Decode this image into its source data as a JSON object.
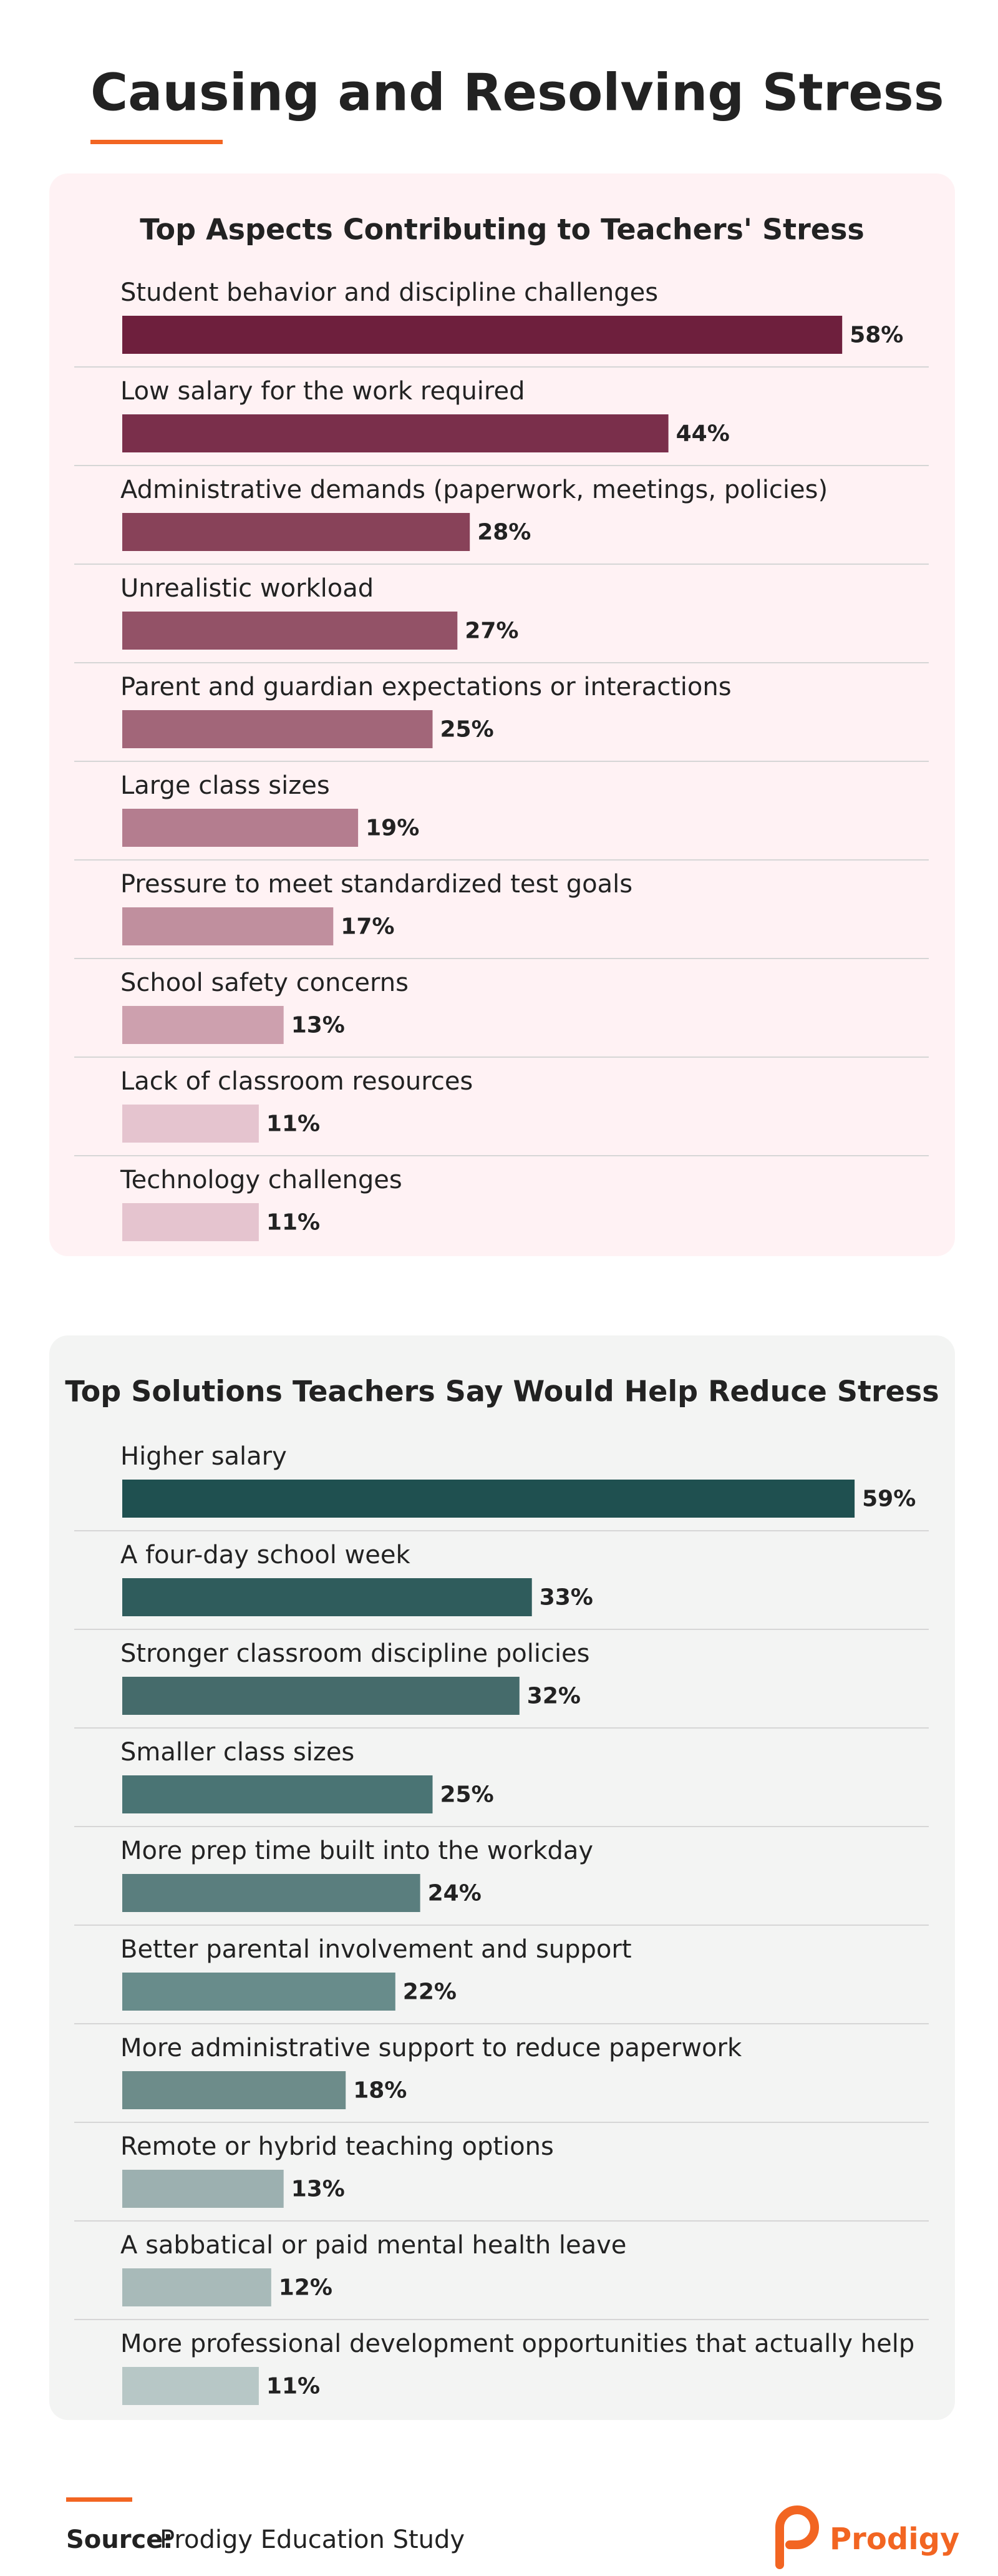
{
  "header": {
    "title": "Causing and Resolving Stress"
  },
  "chart_data": [
    {
      "type": "bar",
      "title": "Top Aspects Contributing to Teachers' Stress",
      "categories": [
        "Student behavior and discipline challenges",
        "Low salary for the work required",
        "Administrative demands (paperwork, meetings, policies)",
        "Unrealistic workload",
        "Parent and guardian expectations or interactions",
        "Large class sizes",
        "Pressure to meet standardized test goals",
        "School safety concerns",
        "Lack of classroom resources",
        "Technology challenges"
      ],
      "values": [
        58,
        44,
        28,
        27,
        25,
        19,
        17,
        13,
        11,
        11
      ],
      "value_labels": [
        "58%",
        "44%",
        "28%",
        "27%",
        "25%",
        "19%",
        "17%",
        "13%",
        "11%",
        "11%"
      ],
      "colors": [
        "#6e1f3d",
        "#7a2f4b",
        "#884259",
        "#935267",
        "#a26679",
        "#b47d8f",
        "#c08f9e",
        "#cda0ae",
        "#e5c4cf",
        "#e5c4cf"
      ]
    },
    {
      "type": "bar",
      "title": "Top Solutions Teachers Say Would Help Reduce Stress",
      "categories": [
        "Higher salary",
        "A four-day school week",
        "Stronger classroom discipline policies",
        "Smaller class sizes",
        "More prep time built into the workday",
        "Better parental involvement and support",
        "More administrative support to reduce paperwork",
        "Remote or hybrid teaching options",
        "A sabbatical or paid mental health leave",
        "More professional development opportunities that actually help"
      ],
      "values": [
        59,
        33,
        32,
        25,
        24,
        22,
        18,
        13,
        12,
        11
      ],
      "value_labels": [
        "59%",
        "33%",
        "32%",
        "25%",
        "24%",
        "22%",
        "18%",
        "13%",
        "12%",
        "11%"
      ],
      "colors": [
        "#1f5050",
        "#2f5c5c",
        "#456b6b",
        "#4a7474",
        "#5a7e7e",
        "#688c8b",
        "#6d8c8a",
        "#9cb0b0",
        "#a8bab9",
        "#b7c7c6"
      ]
    }
  ],
  "footer": {
    "source_label": "Source:",
    "source": "Prodigy Education Study",
    "brand": "Prodigy"
  }
}
